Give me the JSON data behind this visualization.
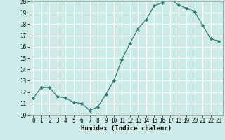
{
  "x": [
    0,
    1,
    2,
    3,
    4,
    5,
    6,
    7,
    8,
    9,
    10,
    11,
    12,
    13,
    14,
    15,
    16,
    17,
    18,
    19,
    20,
    21,
    22,
    23
  ],
  "y": [
    11.5,
    12.4,
    12.4,
    11.6,
    11.5,
    11.1,
    11.0,
    10.4,
    10.7,
    11.8,
    13.0,
    14.9,
    16.3,
    17.6,
    18.4,
    19.6,
    19.9,
    20.2,
    19.7,
    19.4,
    19.1,
    17.9,
    16.7,
    16.5
  ],
  "line_color": "#2d7d6e",
  "marker": "D",
  "marker_size": 2.2,
  "bg_color": "#cceae7",
  "grid_color": "#ffffff",
  "xlabel": "Humidex (Indice chaleur)",
  "xlim": [
    -0.5,
    23.5
  ],
  "ylim": [
    10,
    20
  ],
  "yticks": [
    10,
    11,
    12,
    13,
    14,
    15,
    16,
    17,
    18,
    19,
    20
  ],
  "xticks": [
    0,
    1,
    2,
    3,
    4,
    5,
    6,
    7,
    8,
    9,
    10,
    11,
    12,
    13,
    14,
    15,
    16,
    17,
    18,
    19,
    20,
    21,
    22,
    23
  ],
  "tick_fontsize": 5.5,
  "label_fontsize": 6.5
}
